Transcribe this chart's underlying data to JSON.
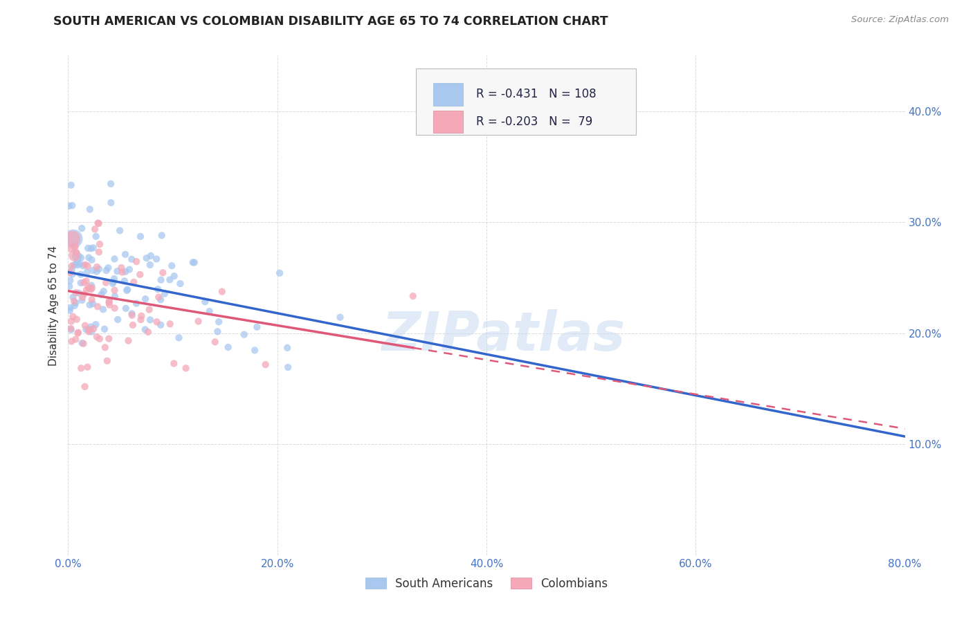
{
  "title": "SOUTH AMERICAN VS COLOMBIAN DISABILITY AGE 65 TO 74 CORRELATION CHART",
  "source": "Source: ZipAtlas.com",
  "ylabel": "Disability Age 65 to 74",
  "xlim": [
    0.0,
    0.8
  ],
  "ylim": [
    0.0,
    0.45
  ],
  "x_ticks": [
    0.0,
    0.2,
    0.4,
    0.6,
    0.8
  ],
  "x_tick_labels": [
    "0.0%",
    "",
    "",
    "",
    "80.0%"
  ],
  "y_ticks": [
    0.1,
    0.2,
    0.3,
    0.4
  ],
  "y_tick_labels": [
    "10.0%",
    "20.0%",
    "30.0%",
    "40.0%"
  ],
  "south_american_color": "#a8c8f0",
  "colombian_color": "#f4a8b8",
  "trend_sa_color": "#3366cc",
  "trend_col_color": "#e05878",
  "R_sa": -0.431,
  "N_sa": 108,
  "R_col": -0.203,
  "N_col": 79,
  "watermark": "ZIPatlas",
  "background_color": "#ffffff",
  "grid_color": "#cccccc",
  "tick_color": "#4472c4",
  "title_color": "#222222",
  "sa_trend_intercept": 0.255,
  "sa_trend_slope": -0.185,
  "col_trend_intercept": 0.238,
  "col_trend_slope": -0.155
}
